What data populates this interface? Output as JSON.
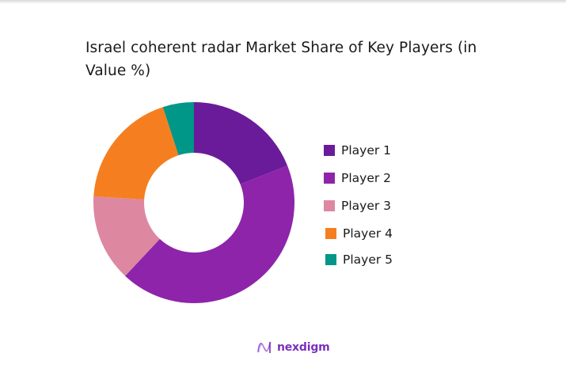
{
  "chart_data": {
    "type": "pie",
    "variant": "donut",
    "title": "Israel coherent radar Market Share of Key Players (in Value %)",
    "categories": [
      "Player 1",
      "Player 2",
      "Player 3",
      "Player 4",
      "Player 5"
    ],
    "values": [
      19,
      43,
      14,
      19,
      5
    ],
    "unit": "%",
    "colors": [
      "#6a1b9a",
      "#8e24aa",
      "#de87a1",
      "#f57f20",
      "#009688"
    ],
    "legend_position": "right",
    "start_angle": "12 o'clock, clockwise"
  },
  "title": {
    "line1": "Israel coherent radar Market Share of Key Players (in",
    "line2": "Value %)"
  },
  "legend": {
    "items": [
      {
        "label": "Player 1",
        "color": "#6a1b9a"
      },
      {
        "label": "Player 2",
        "color": "#8e24aa"
      },
      {
        "label": "Player 3",
        "color": "#de87a1"
      },
      {
        "label": "Player 4",
        "color": "#f57f20"
      },
      {
        "label": "Player 5",
        "color": "#009688"
      }
    ]
  },
  "branding": {
    "logo_text": "nexdigm",
    "logo_icon": "wave-n-icon",
    "color": "#7b2fbf"
  }
}
